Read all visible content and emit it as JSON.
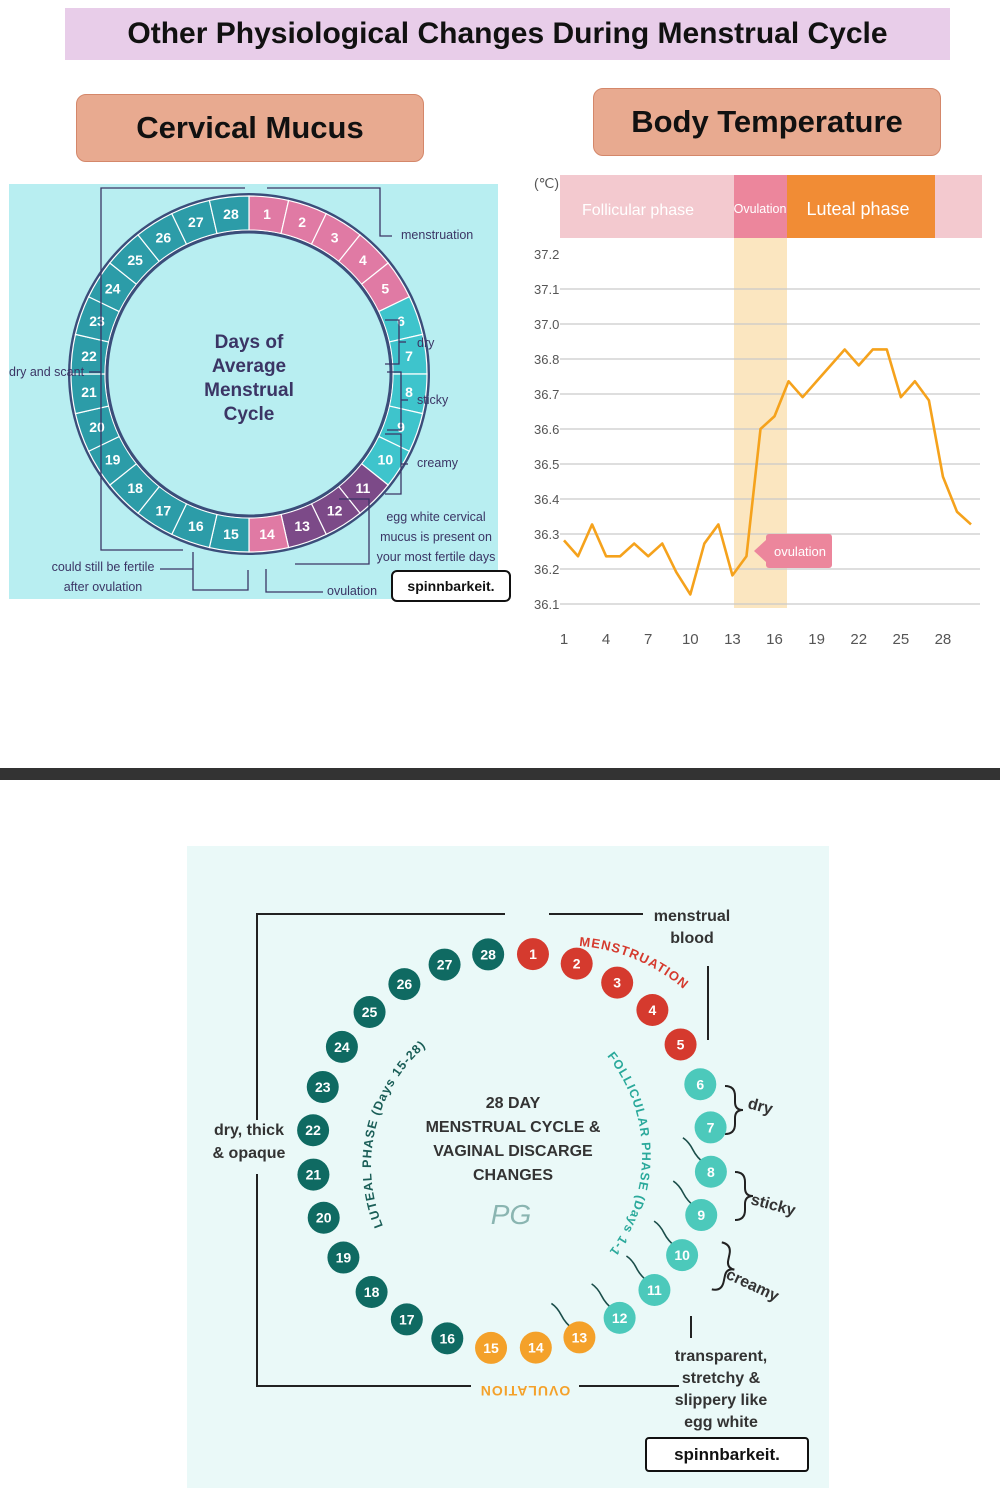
{
  "title": "Other Physiological Changes During Menstrual Cycle",
  "cervical_mucus": {
    "heading": "Cervical Mucus",
    "center_text": [
      "Days of",
      "Average",
      "Menstrual",
      "Cycle"
    ],
    "labels": {
      "menstruation": "menstruation",
      "dry": "dry",
      "sticky": "sticky",
      "creamy": "creamy",
      "egg_white": [
        "egg white cervical",
        "mucus is present on",
        "your most fertile days"
      ],
      "dry_and_scant": "dry and scant",
      "could_still_be_fertile": [
        "could still be fertile",
        "after ovulation"
      ],
      "ovulation": "ovulation"
    },
    "brand": "spinnbarkeit."
  },
  "body_temperature": {
    "heading": "Body Temperature",
    "unit": "(℃)",
    "phases": [
      "Follicular phase",
      "Ovulation",
      "Luteal phase"
    ],
    "ovulation_tag": "ovulation",
    "chart_data": {
      "type": "line",
      "xlabel": "",
      "ylabel": "(℃)",
      "x_ticks": [
        1,
        4,
        7,
        10,
        13,
        16,
        19,
        22,
        25,
        28
      ],
      "y_ticks": [
        "37.2",
        "37.1",
        "37.0",
        "36.8",
        "36.7",
        "36.6",
        "36.5",
        "36.4",
        "36.3",
        "36.2",
        "36.1"
      ],
      "ylim": [
        36.1,
        37.2
      ],
      "series": [
        {
          "color": "#f5a21c",
          "x": [
            1,
            2,
            3,
            4,
            5,
            6,
            7,
            8,
            9,
            10,
            11,
            12,
            13,
            14,
            15,
            16,
            17,
            18,
            19,
            20,
            21,
            22,
            23,
            24,
            25,
            26,
            27,
            28,
            29,
            30
          ],
          "y": [
            36.3,
            36.25,
            36.35,
            36.25,
            36.25,
            36.29,
            36.25,
            36.29,
            36.2,
            36.13,
            36.29,
            36.35,
            36.19,
            36.25,
            36.65,
            36.69,
            36.8,
            36.75,
            36.8,
            36.85,
            36.9,
            36.85,
            36.9,
            36.9,
            36.75,
            36.8,
            36.74,
            36.5,
            36.39,
            36.35
          ]
        }
      ],
      "highlight_band": [
        13,
        16
      ],
      "grid": true
    }
  },
  "vaginal_discharge": {
    "center_text": [
      "28 DAY",
      "MENSTRUAL CYCLE &",
      "VAGINAL DISCARGE",
      "CHANGES"
    ],
    "signature": "PG",
    "arc_labels": {
      "menstruation": "MENSTRUATION",
      "follicular": "FOLLICULAR PHASE (Days 1-13)",
      "luteal": "LUTEAL PHASE (Days 15-28)",
      "ovulation": "OVULATION"
    },
    "labels": {
      "menstrual_blood": [
        "menstrual",
        "blood"
      ],
      "dry": "dry",
      "sticky": "sticky",
      "creamy": "creamy",
      "dry_thick": [
        "dry, thick",
        "& opaque"
      ],
      "transparent": [
        "transparent,",
        "stretchy &",
        "slippery like",
        "egg white"
      ]
    },
    "brand": "spinnbarkeit."
  },
  "colors": {
    "pink": "#e07aa4",
    "teal": "#3ec4cc",
    "purple": "#7c4a88",
    "ring_bg": "#b8eef1",
    "red": "#d53a2e",
    "mint": "#4cc9bb",
    "dark_teal": "#0f6a62",
    "orange": "#f4a12a"
  }
}
